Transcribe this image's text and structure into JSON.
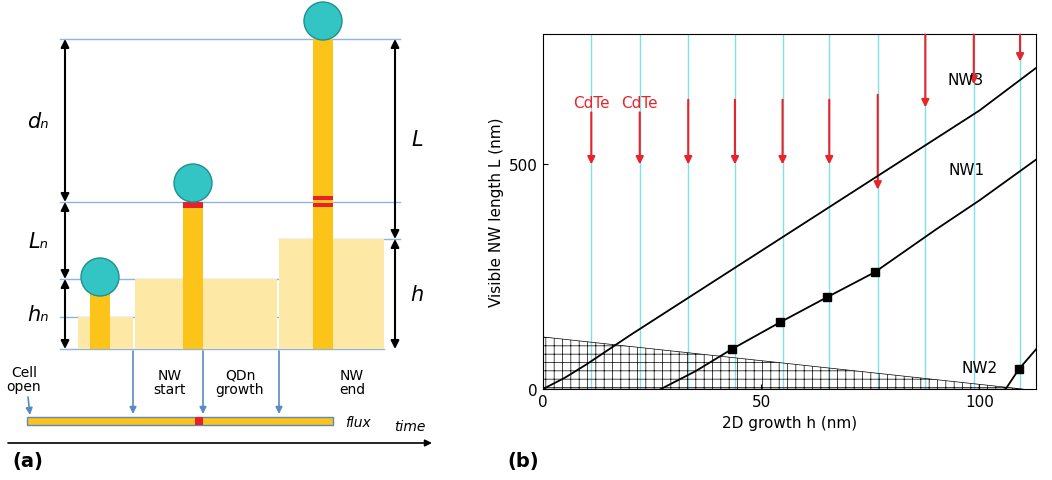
{
  "diagram": {
    "panel_label": "(a)",
    "dimension_labels": {
      "dn": "dₙ",
      "Ln": "Lₙ",
      "hn": "hₙ",
      "L": "L",
      "h": "h"
    },
    "events": [
      "Cell\nopen",
      "NW\nstart",
      "QDn\ngrowth",
      "NW\nend"
    ],
    "flux_label": "flux",
    "time_label": "time"
  },
  "chart_data": {
    "type": "line",
    "panel_label": "(b)",
    "x_label": "2D growth h (nm)",
    "y_label": "Visible NW length L (nm)",
    "xlim": [
      0,
      113
    ],
    "ylim": [
      0,
      790
    ],
    "xticks": [
      0,
      50,
      100
    ],
    "yticks": [
      0,
      500
    ],
    "series": [
      {
        "name": "NW3",
        "color": "#000000",
        "x": [
          0,
          5,
          10,
          20,
          40,
          60,
          80,
          100,
          113
        ],
        "values": [
          0,
          25,
          55,
          120,
          245,
          370,
          495,
          620,
          715
        ]
      },
      {
        "name": "NW1",
        "color": "#000000",
        "x": [
          27,
          30,
          35,
          43.3,
          54.4,
          65,
          76,
          90,
          100,
          113
        ],
        "values": [
          0,
          15,
          40,
          89,
          149,
          204,
          260,
          355,
          420,
          511
        ],
        "measured": {
          "x": [
            43.3,
            54.4,
            65,
            76
          ],
          "values": [
            89,
            149,
            204,
            260
          ],
          "marker": "square"
        }
      },
      {
        "name": "NW2",
        "color": "#000000",
        "x": [
          106,
          109,
          113
        ],
        "values": [
          0,
          44,
          89
        ],
        "measured": {
          "x": [
            109
          ],
          "values": [
            44
          ],
          "marker": "square"
        }
      }
    ],
    "hatched_region": {
      "x": [
        0,
        110
      ],
      "values": [
        116,
        0
      ]
    },
    "insertions": {
      "x": [
        11.1,
        22.2,
        33.3,
        44,
        54.9,
        65.6,
        76.7,
        87.6,
        98.7,
        109.3
      ],
      "from": [
        622,
        622,
        644,
        644,
        644,
        644,
        655,
        789,
        789,
        789
      ],
      "to": [
        500,
        500,
        500,
        500,
        500,
        500,
        444,
        627,
        678,
        729
      ],
      "labels": [
        "CdTe",
        "CdTe",
        null,
        null,
        null,
        null,
        null,
        null,
        null,
        null
      ],
      "color": "#e8242a"
    }
  }
}
